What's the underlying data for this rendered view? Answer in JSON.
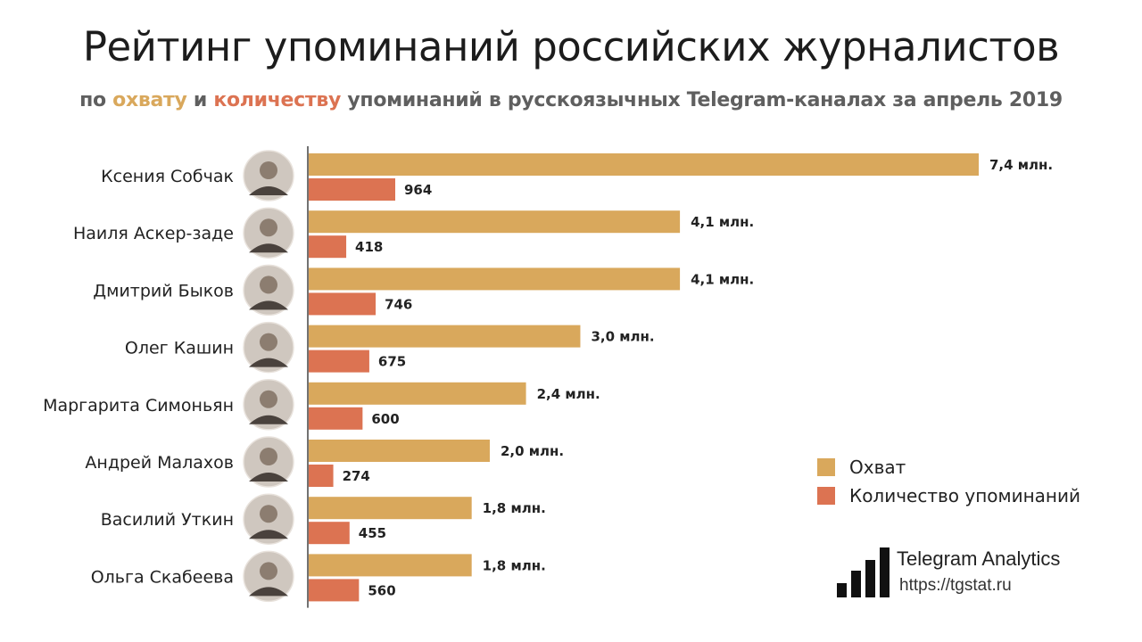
{
  "title": "Рейтинг упоминаний российских журналистов",
  "subtitle": {
    "prefix": "по",
    "reach_word": "охвату",
    "and": "и",
    "count_word": "количеству",
    "suffix": "упоминаний в русскоязычных Telegram-каналах за апрель 2019"
  },
  "colors": {
    "reach": "#d9a85c",
    "count": "#dc7352",
    "axis": "#444444"
  },
  "legend": {
    "reach": "Охват",
    "count": "Количество упоминаний"
  },
  "brand": {
    "name": "Telegram Analytics",
    "url": "https://tgstat.ru"
  },
  "chart_data": {
    "type": "bar",
    "orientation": "horizontal",
    "categories": [
      "Ксения Собчак",
      "Наиля Аскер-заде",
      "Дмитрий Быков",
      "Олег Кашин",
      "Маргарита Симоньян",
      "Андрей Малахов",
      "Василий Уткин",
      "Ольга Скабеева"
    ],
    "series": [
      {
        "name": "Охват",
        "values": [
          7.4,
          4.1,
          4.1,
          3.0,
          2.4,
          2.0,
          1.8,
          1.8
        ],
        "labels": [
          "7,4 млн.",
          "4,1 млн.",
          "4,1 млн.",
          "3,0 млн.",
          "2,4 млн.",
          "2,0 млн.",
          "1,8 млн.",
          "1,8 млн."
        ]
      },
      {
        "name": "Количество упоминаний",
        "values": [
          964,
          418,
          746,
          675,
          600,
          274,
          455,
          560
        ],
        "labels": [
          "964",
          "418",
          "746",
          "675",
          "600",
          "274",
          "455",
          "560"
        ]
      }
    ],
    "legend_position": "right",
    "grid": false
  }
}
